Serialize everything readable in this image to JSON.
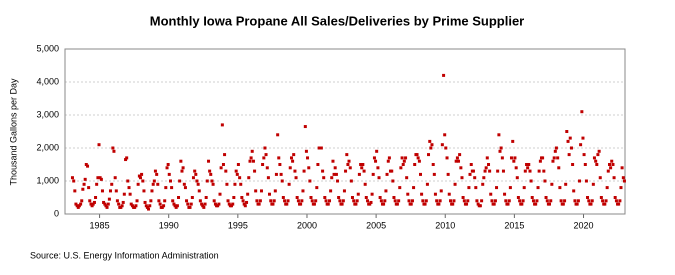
{
  "chart_data": {
    "type": "scatter",
    "title": "Monthly Iowa Propane All Sales/Deliveries by Prime Supplier",
    "y_label": "Thousand Gallons per Day",
    "source": "Source: U.S. Energy Information Administration",
    "color": "#c00000",
    "grid": true,
    "xlim": [
      1982.5,
      2023
    ],
    "xticks": [
      1985,
      1990,
      1995,
      2000,
      2005,
      2010,
      2015,
      2020
    ],
    "ylim": [
      0,
      5000
    ],
    "yticks": [
      0,
      {
        "value": 1000,
        "label": "1,000"
      },
      {
        "value": 2000,
        "label": "2,000"
      },
      {
        "value": 3000,
        "label": "3,000"
      },
      {
        "value": 4000,
        "label": "4,000"
      },
      {
        "value": 5000,
        "label": "5,000"
      }
    ],
    "x": [
      1983.04,
      1983.13,
      1983.21,
      1983.29,
      1983.38,
      1983.46,
      1983.54,
      1983.63,
      1983.71,
      1983.79,
      1983.88,
      1983.96,
      1984.04,
      1984.13,
      1984.21,
      1984.29,
      1984.38,
      1984.46,
      1984.54,
      1984.63,
      1984.71,
      1984.79,
      1984.88,
      1984.96,
      1985.04,
      1985.13,
      1985.21,
      1985.29,
      1985.38,
      1985.46,
      1985.54,
      1985.63,
      1985.71,
      1985.79,
      1985.88,
      1985.96,
      1986.04,
      1986.13,
      1986.21,
      1986.29,
      1986.38,
      1986.46,
      1986.54,
      1986.63,
      1986.71,
      1986.79,
      1986.88,
      1986.96,
      1987.04,
      1987.13,
      1987.21,
      1987.29,
      1987.38,
      1987.46,
      1987.54,
      1987.63,
      1987.71,
      1987.79,
      1987.88,
      1987.96,
      1988.04,
      1988.13,
      1988.21,
      1988.29,
      1988.38,
      1988.46,
      1988.54,
      1988.63,
      1988.71,
      1988.79,
      1988.88,
      1988.96,
      1989.04,
      1989.13,
      1989.21,
      1989.29,
      1989.38,
      1989.46,
      1989.54,
      1989.63,
      1989.71,
      1989.79,
      1989.88,
      1989.96,
      1990.04,
      1990.13,
      1990.21,
      1990.29,
      1990.38,
      1990.46,
      1990.54,
      1990.63,
      1990.71,
      1990.79,
      1990.88,
      1990.96,
      1991.04,
      1991.13,
      1991.21,
      1991.29,
      1991.38,
      1991.46,
      1991.54,
      1991.63,
      1991.71,
      1991.79,
      1991.88,
      1991.96,
      1992.04,
      1992.13,
      1992.21,
      1992.29,
      1992.38,
      1992.46,
      1992.54,
      1992.63,
      1992.71,
      1992.79,
      1992.88,
      1992.96,
      1993.04,
      1993.13,
      1993.21,
      1993.29,
      1993.38,
      1993.46,
      1993.54,
      1993.63,
      1993.71,
      1993.79,
      1993.88,
      1993.96,
      1994.04,
      1994.13,
      1994.21,
      1994.29,
      1994.38,
      1994.46,
      1994.54,
      1994.63,
      1994.71,
      1994.79,
      1994.88,
      1994.96,
      1995.04,
      1995.13,
      1995.21,
      1995.29,
      1995.38,
      1995.46,
      1995.54,
      1995.63,
      1995.71,
      1995.79,
      1995.88,
      1995.96,
      1996.04,
      1996.13,
      1996.21,
      1996.29,
      1996.38,
      1996.46,
      1996.54,
      1996.63,
      1996.71,
      1996.79,
      1996.88,
      1996.96,
      1997.04,
      1997.13,
      1997.21,
      1997.29,
      1997.38,
      1997.46,
      1997.54,
      1997.63,
      1997.71,
      1997.79,
      1997.88,
      1997.96,
      1998.04,
      1998.13,
      1998.21,
      1998.29,
      1998.38,
      1998.46,
      1998.54,
      1998.63,
      1998.71,
      1998.79,
      1998.88,
      1998.96,
      1999.04,
      1999.13,
      1999.21,
      1999.29,
      1999.38,
      1999.46,
      1999.54,
      1999.63,
      1999.71,
      1999.79,
      1999.88,
      1999.96,
      2000.04,
      2000.13,
      2000.21,
      2000.29,
      2000.38,
      2000.46,
      2000.54,
      2000.63,
      2000.71,
      2000.79,
      2000.88,
      2000.96,
      2001.04,
      2001.13,
      2001.21,
      2001.29,
      2001.38,
      2001.46,
      2001.54,
      2001.63,
      2001.71,
      2001.79,
      2001.88,
      2001.96,
      2002.04,
      2002.13,
      2002.21,
      2002.29,
      2002.38,
      2002.46,
      2002.54,
      2002.63,
      2002.71,
      2002.79,
      2002.88,
      2002.96,
      2003.04,
      2003.13,
      2003.21,
      2003.29,
      2003.38,
      2003.46,
      2003.54,
      2003.63,
      2003.71,
      2003.79,
      2003.88,
      2003.96,
      2004.04,
      2004.13,
      2004.21,
      2004.29,
      2004.38,
      2004.46,
      2004.54,
      2004.63,
      2004.71,
      2004.79,
      2004.88,
      2004.96,
      2005.04,
      2005.13,
      2005.21,
      2005.29,
      2005.38,
      2005.46,
      2005.54,
      2005.63,
      2005.71,
      2005.79,
      2005.88,
      2005.96,
      2006.04,
      2006.13,
      2006.21,
      2006.29,
      2006.38,
      2006.46,
      2006.54,
      2006.63,
      2006.71,
      2006.79,
      2006.88,
      2006.96,
      2007.04,
      2007.13,
      2007.21,
      2007.29,
      2007.38,
      2007.46,
      2007.54,
      2007.63,
      2007.71,
      2007.79,
      2007.88,
      2007.96,
      2008.04,
      2008.13,
      2008.21,
      2008.29,
      2008.38,
      2008.46,
      2008.54,
      2008.63,
      2008.71,
      2008.79,
      2008.88,
      2008.96,
      2009.04,
      2009.13,
      2009.21,
      2009.29,
      2009.38,
      2009.46,
      2009.54,
      2009.63,
      2009.71,
      2009.79,
      2009.88,
      2009.96,
      2010.04,
      2010.13,
      2010.21,
      2010.29,
      2010.38,
      2010.46,
      2010.54,
      2010.63,
      2010.71,
      2010.79,
      2010.88,
      2010.96,
      2011.04,
      2011.13,
      2011.21,
      2011.29,
      2011.38,
      2011.46,
      2011.54,
      2011.63,
      2011.71,
      2011.79,
      2011.88,
      2011.96,
      2012.04,
      2012.13,
      2012.21,
      2012.29,
      2012.38,
      2012.46,
      2012.54,
      2012.63,
      2012.71,
      2012.79,
      2012.88,
      2012.96,
      2013.04,
      2013.13,
      2013.21,
      2013.29,
      2013.38,
      2013.46,
      2013.54,
      2013.63,
      2013.71,
      2013.79,
      2013.88,
      2013.96,
      2014.04,
      2014.13,
      2014.21,
      2014.29,
      2014.38,
      2014.46,
      2014.54,
      2014.63,
      2014.71,
      2014.79,
      2014.88,
      2014.96,
      2015.04,
      2015.13,
      2015.21,
      2015.29,
      2015.38,
      2015.46,
      2015.54,
      2015.63,
      2015.71,
      2015.79,
      2015.88,
      2015.96,
      2016.04,
      2016.13,
      2016.21,
      2016.29,
      2016.38,
      2016.46,
      2016.54,
      2016.63,
      2016.71,
      2016.79,
      2016.88,
      2016.96,
      2017.04,
      2017.13,
      2017.21,
      2017.29,
      2017.38,
      2017.46,
      2017.54,
      2017.63,
      2017.71,
      2017.79,
      2017.88,
      2017.96,
      2018.04,
      2018.13,
      2018.21,
      2018.29,
      2018.38,
      2018.46,
      2018.54,
      2018.63,
      2018.71,
      2018.79,
      2018.88,
      2018.96,
      2019.04,
      2019.13,
      2019.21,
      2019.29,
      2019.38,
      2019.46,
      2019.54,
      2019.63,
      2019.71,
      2019.79,
      2019.88,
      2019.96,
      2020.04,
      2020.13,
      2020.21,
      2020.29,
      2020.38,
      2020.46,
      2020.54,
      2020.63,
      2020.71,
      2020.79,
      2020.88,
      2020.96,
      2021.04,
      2021.13,
      2021.21,
      2021.29,
      2021.38,
      2021.46,
      2021.54,
      2021.63,
      2021.71,
      2021.79,
      2021.88,
      2021.96,
      2022.04,
      2022.13,
      2022.21,
      2022.29,
      2022.38,
      2022.46,
      2022.54,
      2022.63,
      2022.71,
      2022.79,
      2022.88,
      2022.96
    ],
    "values": [
      1100,
      1000,
      700,
      300,
      250,
      200,
      250,
      300,
      400,
      750,
      900,
      1050,
      1500,
      1450,
      800,
      400,
      300,
      250,
      300,
      350,
      500,
      900,
      1100,
      2100,
      1100,
      1050,
      700,
      350,
      300,
      250,
      200,
      300,
      450,
      700,
      900,
      2000,
      1900,
      1100,
      700,
      400,
      300,
      200,
      200,
      250,
      350,
      600,
      1650,
      1700,
      1000,
      800,
      600,
      300,
      250,
      200,
      200,
      250,
      400,
      900,
      1150,
      1100,
      1200,
      1000,
      700,
      350,
      250,
      200,
      150,
      250,
      400,
      700,
      900,
      1000,
      1300,
      1200,
      900,
      400,
      300,
      200,
      200,
      250,
      400,
      800,
      1400,
      1500,
      1200,
      1000,
      800,
      400,
      300,
      250,
      200,
      250,
      500,
      1000,
      1600,
      1300,
      1400,
      900,
      800,
      400,
      300,
      200,
      200,
      300,
      500,
      1100,
      1300,
      1200,
      1000,
      900,
      700,
      400,
      300,
      250,
      200,
      300,
      500,
      1000,
      1600,
      1300,
      1200,
      1000,
      900,
      400,
      300,
      250,
      250,
      300,
      600,
      1400,
      2700,
      1500,
      1800,
      1300,
      900,
      400,
      300,
      250,
      250,
      300,
      500,
      900,
      1300,
      1200,
      1500,
      1100,
      900,
      500,
      400,
      300,
      250,
      350,
      600,
      1100,
      1600,
      1700,
      1900,
      1600,
      1300,
      700,
      400,
      300,
      300,
      400,
      700,
      1500,
      1700,
      2000,
      1800,
      1400,
      1100,
      600,
      400,
      300,
      300,
      400,
      700,
      1200,
      2400,
      1700,
      1500,
      1200,
      1000,
      500,
      400,
      300,
      300,
      400,
      900,
      1400,
      1700,
      1600,
      1800,
      1300,
      1100,
      500,
      400,
      300,
      300,
      400,
      700,
      1300,
      2650,
      1900,
      1700,
      1400,
      1000,
      500,
      400,
      300,
      300,
      400,
      800,
      1500,
      2000,
      2000,
      2000,
      1300,
      1100,
      500,
      400,
      300,
      300,
      400,
      700,
      1100,
      1600,
      1200,
      1400,
      1200,
      1000,
      500,
      400,
      300,
      300,
      400,
      700,
      1300,
      1800,
      1500,
      1600,
      1400,
      1000,
      500,
      400,
      300,
      300,
      400,
      600,
      1200,
      1500,
      1400,
      1500,
      1300,
      900,
      500,
      400,
      300,
      300,
      350,
      600,
      1200,
      1700,
      1600,
      1900,
      1400,
      1100,
      500,
      400,
      300,
      300,
      400,
      700,
      1200,
      1600,
      1700,
      1300,
      1300,
      1000,
      500,
      400,
      300,
      300,
      400,
      800,
      1400,
      1700,
      1500,
      1600,
      1700,
      1100,
      600,
      400,
      300,
      300,
      400,
      800,
      1500,
      1800,
      1800,
      1700,
      1600,
      1200,
      600,
      400,
      300,
      300,
      400,
      900,
      1800,
      2200,
      2000,
      2100,
      1500,
      1200,
      600,
      400,
      300,
      300,
      400,
      700,
      2100,
      4200,
      2400,
      2000,
      1700,
      1200,
      600,
      400,
      300,
      300,
      400,
      900,
      1600,
      1700,
      1600,
      1800,
      1400,
      1100,
      500,
      400,
      300,
      300,
      400,
      800,
      1200,
      1500,
      1300,
      1300,
      1100,
      800,
      400,
      300,
      250,
      250,
      400,
      900,
      1100,
      1300,
      1400,
      1700,
      1500,
      1300,
      600,
      400,
      300,
      300,
      400,
      800,
      1300,
      2400,
      1900,
      2000,
      1700,
      1300,
      600,
      400,
      300,
      300,
      400,
      800,
      1700,
      2200,
      1600,
      1700,
      1400,
      1100,
      500,
      400,
      300,
      300,
      400,
      800,
      1300,
      1500,
      1400,
      1500,
      1300,
      1000,
      500,
      400,
      300,
      300,
      400,
      800,
      1300,
      1600,
      1700,
      1700,
      1300,
      1000,
      500,
      400,
      300,
      300,
      400,
      900,
      1600,
      1700,
      1900,
      2000,
      1700,
      1400,
      800,
      400,
      300,
      300,
      400,
      900,
      2500,
      2200,
      1800,
      2300,
      2000,
      1500,
      700,
      400,
      300,
      300,
      400,
      1000,
      2100,
      3100,
      2300,
      1800,
      1500,
      1000,
      500,
      400,
      300,
      300,
      400,
      900,
      1700,
      1600,
      1500,
      1800,
      1900,
      1100,
      500,
      400,
      300,
      300,
      400,
      800,
      1300,
      1500,
      1400,
      1600,
      1500,
      1100,
      500,
      400,
      300,
      300,
      400,
      800,
      1400,
      1100,
      1000
    ]
  }
}
